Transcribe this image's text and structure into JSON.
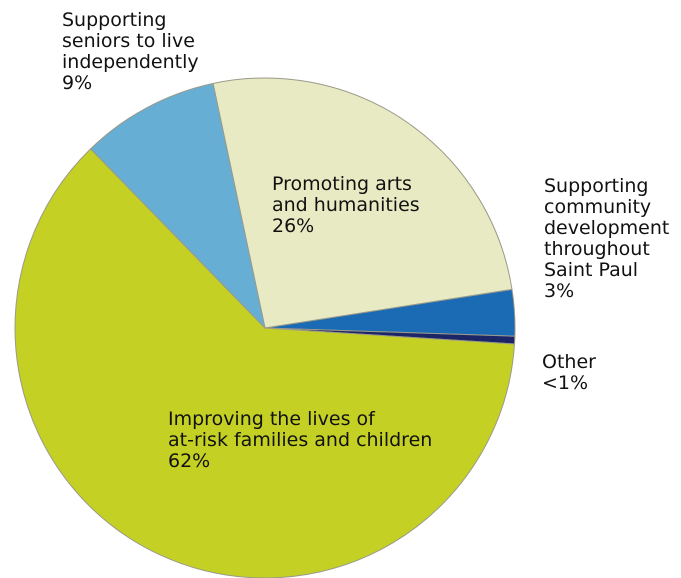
{
  "chart_data": {
    "type": "pie",
    "slices": [
      {
        "key": "arts",
        "lines": [
          "Promoting arts",
          "and humanities"
        ],
        "pct_label": "26%",
        "value": 26,
        "color": "#e8eac3"
      },
      {
        "key": "community",
        "lines": [
          "Supporting",
          "community",
          "development",
          "throughout",
          "Saint Paul"
        ],
        "pct_label": "3%",
        "value": 3,
        "color": "#1a6ab4"
      },
      {
        "key": "other",
        "lines": [
          "Other"
        ],
        "pct_label": "<1%",
        "value": 0.5,
        "color": "#1c2566"
      },
      {
        "key": "families",
        "lines": [
          "Improving the lives of",
          "at-risk families and children"
        ],
        "pct_label": "62%",
        "value": 62,
        "color": "#c5d024"
      },
      {
        "key": "seniors",
        "lines": [
          "Supporting",
          "seniors to live",
          "independently"
        ],
        "pct_label": "9%",
        "value": 9,
        "color": "#66aed3"
      }
    ]
  }
}
